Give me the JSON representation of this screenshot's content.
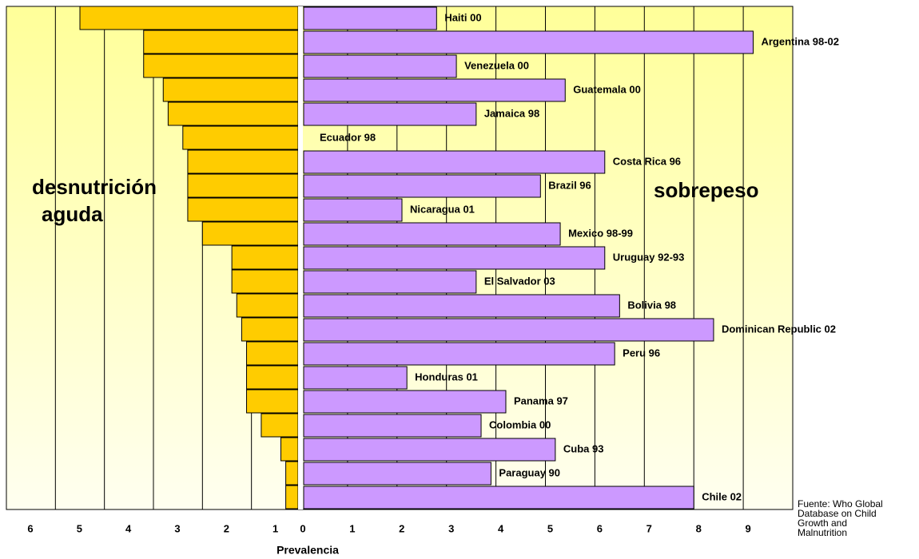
{
  "chart_data": {
    "type": "butterfly",
    "categories": [
      "Haiti 00",
      "Argentina 98-02",
      "Venezuela 00",
      "Guatemala 00",
      "Jamaica 98",
      "Ecuador  98",
      "Costa Rica 96",
      "Brazil 96",
      "Nicaragua 01",
      "Mexico 98-99",
      "Uruguay 92-93",
      "El Salvador 03",
      "Bolivia 98",
      "Dominican Republic 02",
      "Peru 96",
      "Honduras 01",
      "Panama 97",
      "Colombia 00",
      "Cuba 93",
      "Paraguay 90",
      "Chile 02"
    ],
    "series": [
      {
        "side": "left",
        "color": "#ffcc00",
        "values": [
          4.5,
          3.2,
          3.2,
          2.8,
          2.7,
          2.4,
          2.3,
          2.3,
          2.3,
          2.0,
          1.4,
          1.4,
          1.3,
          1.2,
          1.1,
          1.1,
          1.1,
          0.8,
          0.4,
          0.3,
          0.3
        ]
      },
      {
        "side": "right",
        "color": "#cc99ff",
        "values": [
          2.8,
          9.2,
          3.2,
          5.4,
          3.6,
          0,
          6.2,
          4.9,
          2.1,
          5.3,
          6.2,
          3.6,
          6.5,
          8.4,
          6.4,
          2.2,
          4.2,
          3.7,
          5.2,
          3.9,
          8.0
        ]
      }
    ],
    "left_xlim": [
      0,
      6
    ],
    "left_xticks": [
      1,
      2,
      3,
      4,
      5,
      6
    ],
    "xlim": [
      0,
      10
    ],
    "xticks": [
      0,
      1,
      2,
      3,
      4,
      5,
      6,
      7,
      8,
      9
    ],
    "grid": true,
    "left_label": [
      "desnutrición",
      "aguda"
    ],
    "right_label": "sobrepeso",
    "xlabel": "Prevalencia",
    "source": [
      "Fuente:  Who Global",
      "Database on Child",
      "Growth and",
      "Malnutrition"
    ]
  }
}
